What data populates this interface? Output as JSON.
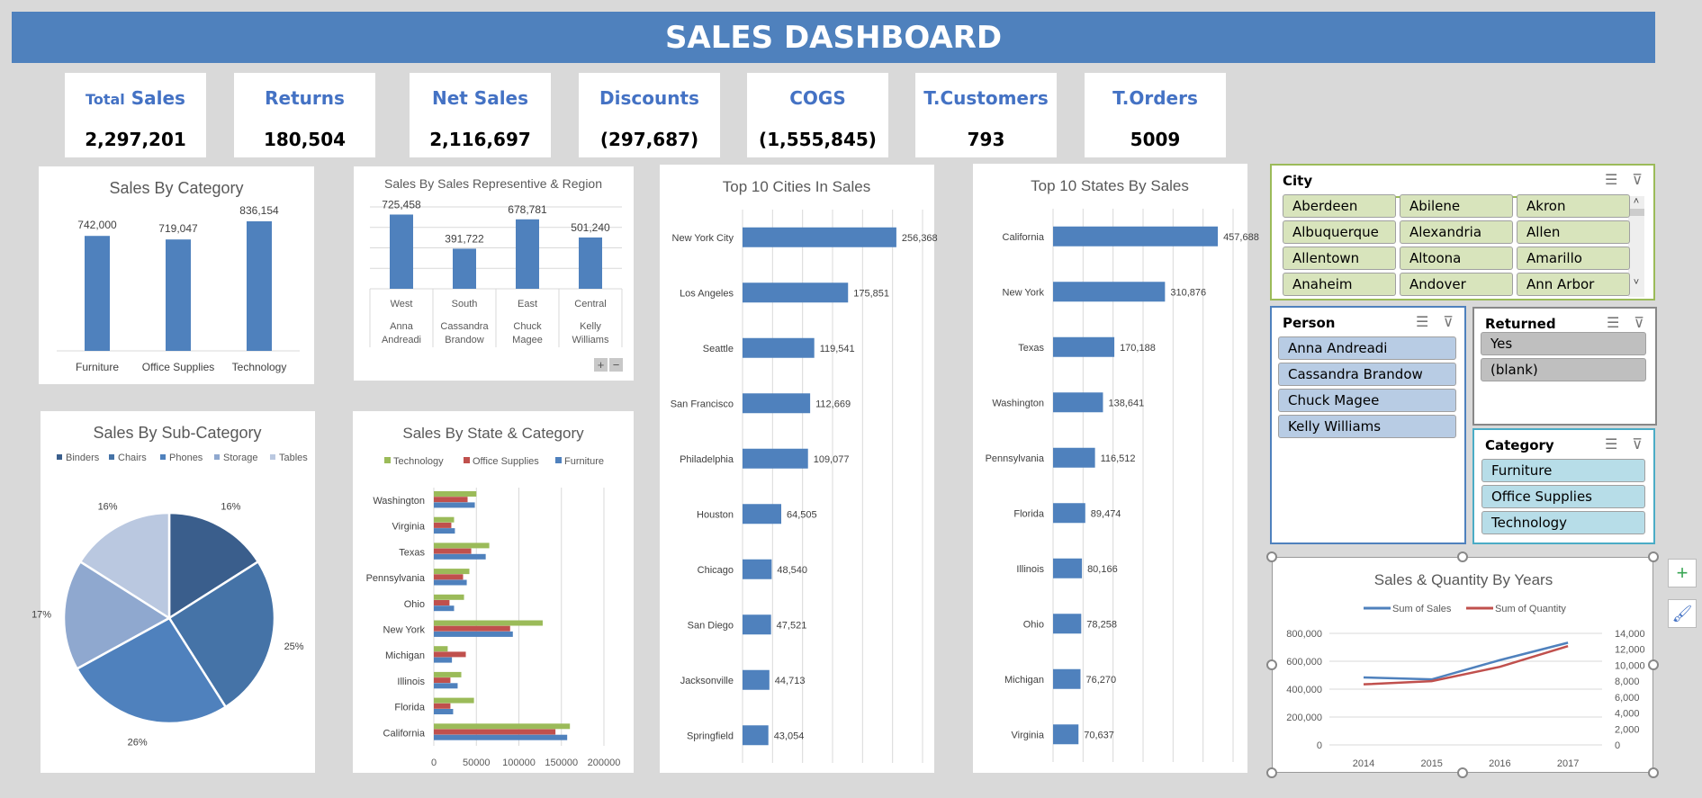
{
  "header": {
    "title": "SALES DASHBOARD",
    "color": "#4f81bd"
  },
  "kpis": [
    {
      "label_small": "Total",
      "label": "Sales",
      "value": "2,297,201"
    },
    {
      "label": "Returns",
      "value": "180,504"
    },
    {
      "label": "Net Sales",
      "value": "2,116,697"
    },
    {
      "label": "Discounts",
      "value": "(297,687)"
    },
    {
      "label": "COGS",
      "value": "(1,555,845)"
    },
    {
      "label": "T.Customers",
      "value": "793"
    },
    {
      "label": "T.Orders",
      "value": "5009"
    }
  ],
  "chart_data": [
    {
      "id": "category",
      "type": "bar",
      "title": "Sales By Category",
      "categories": [
        "Furniture",
        "Office Supplies",
        "Technology"
      ],
      "values": [
        742000,
        719047,
        836154
      ],
      "data_labels": [
        "742,000",
        "719,047",
        "836,154"
      ],
      "ylim": [
        0,
        900000
      ],
      "color": "#4f81bd"
    },
    {
      "id": "rep",
      "type": "bar",
      "title": "Sales By Sales Representive & Region",
      "categories": [
        [
          "West",
          "Anna",
          "Andreadi"
        ],
        [
          "South",
          "Cassandra",
          "Brandow"
        ],
        [
          "East",
          "Chuck",
          "Magee"
        ],
        [
          "Central",
          "Kelly",
          "Williams"
        ]
      ],
      "values": [
        725458,
        391722,
        678781,
        501240
      ],
      "data_labels": [
        "725,458",
        "391,722",
        "678,781",
        "501,240"
      ],
      "ylim": [
        0,
        800000
      ],
      "grid": true,
      "color": "#4f81bd",
      "buttons": [
        "+",
        "−"
      ]
    },
    {
      "id": "cities",
      "type": "bar",
      "orientation": "horizontal",
      "title": "Top 10 Cities In Sales",
      "categories": [
        "New York City",
        "Los Angeles",
        "Seattle",
        "San Francisco",
        "Philadelphia",
        "Houston",
        "Chicago",
        "San Diego",
        "Jacksonville",
        "Springfield"
      ],
      "values": [
        256368,
        175851,
        119541,
        112669,
        109077,
        64505,
        48540,
        47521,
        44713,
        43054
      ],
      "data_labels": [
        "256,368",
        "175,851",
        "119,541",
        "112,669",
        "109,077",
        "64,505",
        "48,540",
        "47,521",
        "44,713",
        "43,054"
      ],
      "xlim": [
        0,
        300000
      ],
      "grid": true,
      "color": "#4f81bd"
    },
    {
      "id": "states",
      "type": "bar",
      "orientation": "horizontal",
      "title": "Top 10 States By Sales",
      "categories": [
        "California",
        "New York",
        "Texas",
        "Washington",
        "Pennsylvania",
        "Florida",
        "Illinois",
        "Ohio",
        "Michigan",
        "Virginia"
      ],
      "values": [
        457688,
        310876,
        170188,
        138641,
        116512,
        89474,
        80166,
        78258,
        76270,
        70637
      ],
      "data_labels": [
        "457,688",
        "310,876",
        "170,188",
        "138,641",
        "116,512",
        "89,474",
        "80,166",
        "78,258",
        "76,270",
        "70,637"
      ],
      "xlim": [
        0,
        500000
      ],
      "grid": true,
      "color": "#4f81bd"
    },
    {
      "id": "subcat",
      "type": "pie",
      "title": "Sales By Sub-Category",
      "categories": [
        "Binders",
        "Chairs",
        "Phones",
        "Storage",
        "Tables"
      ],
      "values": [
        16,
        25,
        26,
        17,
        16
      ],
      "data_labels": [
        "16%",
        "25%",
        "26%",
        "17%",
        "16%"
      ],
      "colors": [
        "#3a5e8c",
        "#4573a7",
        "#4f81bd",
        "#8fa8cf",
        "#bac8e0"
      ],
      "legend": "top"
    },
    {
      "id": "statecat",
      "type": "bar",
      "orientation": "horizontal",
      "title": "Sales By State & Category",
      "categories": [
        "Washington",
        "Virginia",
        "Texas",
        "Pennsylvania",
        "Ohio",
        "New York",
        "Michigan",
        "Illinois",
        "Florida",
        "California"
      ],
      "series": [
        {
          "name": "Technology",
          "color": "#9bbb59",
          "values": [
            50000,
            23800,
            65200,
            41800,
            35500,
            128000,
            16300,
            32300,
            47200,
            160000
          ]
        },
        {
          "name": "Office Supplies",
          "color": "#c0504d",
          "values": [
            39700,
            20600,
            44000,
            34400,
            18400,
            89700,
            37600,
            19500,
            19500,
            143000
          ]
        },
        {
          "name": "Furniture",
          "color": "#4f81bd",
          "values": [
            48200,
            24800,
            61000,
            38700,
            23800,
            92900,
            21300,
            28000,
            22700,
            156800
          ]
        }
      ],
      "xlim": [
        0,
        200000
      ],
      "xticks": [
        "0",
        "50000",
        "100000",
        "150000",
        "200000"
      ],
      "grid": true,
      "legend": "top"
    },
    {
      "id": "years",
      "type": "line",
      "title": "Sales & Quantity By Years",
      "categories": [
        "2014",
        "2015",
        "2016",
        "2017"
      ],
      "series": [
        {
          "name": "Sum of Sales",
          "color": "#4f81bd",
          "axis": "left",
          "values": [
            484000,
            470000,
            608000,
            733000
          ]
        },
        {
          "name": "Sum of Quantity",
          "color": "#c0504d",
          "axis": "right",
          "values": [
            7600,
            8000,
            9800,
            12400
          ]
        }
      ],
      "ylim": [
        0,
        800000
      ],
      "yticks": [
        "800,000",
        "600,000",
        "400,000",
        "200,000",
        "0"
      ],
      "y2lim": [
        0,
        14000
      ],
      "y2ticks": [
        "14,000",
        "12,000",
        "10,000",
        "8,000",
        "6,000",
        "4,000",
        "2,000",
        "0"
      ],
      "grid": true,
      "legend": "top"
    }
  ],
  "slicers": {
    "city": {
      "title": "City",
      "items": [
        "Aberdeen",
        "Abilene",
        "Akron",
        "Albuquerque",
        "Alexandria",
        "Allen",
        "Allentown",
        "Altoona",
        "Amarillo",
        "Anaheim",
        "Andover",
        "Ann Arbor"
      ]
    },
    "person": {
      "title": "Person",
      "items": [
        "Anna Andreadi",
        "Cassandra Brandow",
        "Chuck Magee",
        "Kelly Williams"
      ]
    },
    "returned": {
      "title": "Returned",
      "items": [
        "Yes",
        "(blank)"
      ]
    },
    "category": {
      "title": "Category",
      "items": [
        "Furniture",
        "Office Supplies",
        "Technology"
      ]
    }
  },
  "side_buttons": {
    "add": "+",
    "style": "🖌"
  }
}
